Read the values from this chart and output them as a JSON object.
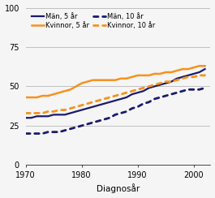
{
  "title": "",
  "xlabel": "Diagnosår",
  "ylabel": "",
  "ylim": [
    0,
    100
  ],
  "xlim": [
    1970,
    2003
  ],
  "yticks": [
    0,
    25,
    50,
    75,
    100
  ],
  "xticks": [
    1970,
    1980,
    1990,
    2000
  ],
  "background_color": "#f5f5f5",
  "grid_color": "#c0c0c0",
  "man_color": "#1a1a6e",
  "kvinna_color": "#f5921e",
  "years": [
    1970,
    1971,
    1972,
    1973,
    1974,
    1975,
    1976,
    1977,
    1978,
    1979,
    1980,
    1981,
    1982,
    1983,
    1984,
    1985,
    1986,
    1987,
    1988,
    1989,
    1990,
    1991,
    1992,
    1993,
    1994,
    1995,
    1996,
    1997,
    1998,
    1999,
    2000,
    2001,
    2002
  ],
  "man_5yr": [
    30,
    30,
    31,
    31,
    31,
    32,
    32,
    32,
    33,
    34,
    35,
    36,
    37,
    38,
    39,
    40,
    41,
    42,
    43,
    45,
    46,
    47,
    49,
    50,
    51,
    52,
    53,
    55,
    56,
    57,
    58,
    59,
    61
  ],
  "kvinna_5yr": [
    43,
    43,
    43,
    44,
    44,
    45,
    46,
    47,
    48,
    50,
    52,
    53,
    54,
    54,
    54,
    54,
    54,
    55,
    55,
    56,
    57,
    57,
    57,
    58,
    58,
    59,
    59,
    60,
    61,
    61,
    62,
    63,
    63
  ],
  "man_10yr": [
    20,
    20,
    20,
    20,
    21,
    21,
    21,
    22,
    23,
    24,
    25,
    26,
    27,
    28,
    29,
    30,
    32,
    33,
    34,
    36,
    37,
    39,
    40,
    42,
    43,
    44,
    45,
    46,
    47,
    48,
    48,
    48,
    49
  ],
  "kvinna_10yr": [
    33,
    33,
    33,
    33,
    34,
    34,
    35,
    35,
    36,
    37,
    38,
    39,
    40,
    41,
    42,
    43,
    44,
    45,
    46,
    47,
    48,
    49,
    50,
    51,
    52,
    53,
    53,
    54,
    55,
    56,
    56,
    57,
    57
  ],
  "legend_entries": [
    "Män, 5 år",
    "Kvinnor, 5 år",
    "Män, 10 år",
    "Kvinnor, 10 år"
  ]
}
